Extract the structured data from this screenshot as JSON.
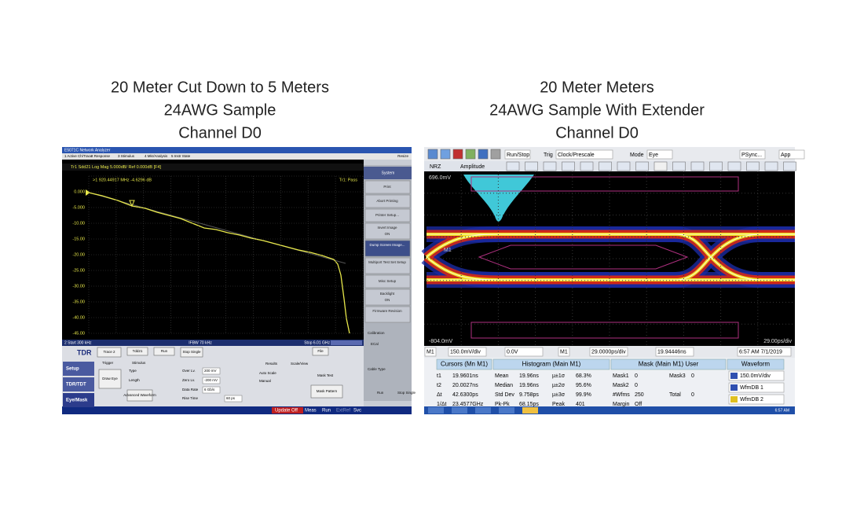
{
  "left": {
    "title_lines": [
      "20 Meter Cut Down to 5 Meters",
      "24AWG Sample",
      "Channel D0"
    ],
    "app_title": "E5071C Network Analyzer",
    "menu": [
      "1 Active Ch/Trace",
      "2 Response",
      "3 Stimulus",
      "4 Mkr/Analysis",
      "5 Instr State"
    ],
    "menu_right": "Resize",
    "trace_header": "Tr1 Sdd21 Log Mag 5.000dB/ Ref 0.000dB [F4]",
    "marker": ">1  920.44917 MHz  -4.6296 dB",
    "pass": "Tr1: Pass",
    "yticks": [
      "0.000",
      "-5.000",
      "-10.00",
      "-15.00",
      "-20.00",
      "-25.00",
      "-30.00",
      "-35.00",
      "-40.00",
      "-45.00"
    ],
    "status_start": "2  Start 300 kHz",
    "status_ifbw": "IFBW 70 kHz",
    "status_stop": "Stop 6.01 GHz",
    "side_buttons": [
      "System",
      "Print",
      "Abort Printing",
      "Printer Setup...",
      "Invert Image",
      "Dump Screen Image...",
      "Multiport Test Set Setup",
      "Misc Setup",
      "Backlight",
      "Firmware Revision"
    ],
    "side_on": [
      "ON",
      "ON"
    ],
    "tabs": [
      "Setup",
      "TDR/TDT",
      "Eye/Mask"
    ],
    "panel_brand": "TDR",
    "panel_buttons": [
      "Trace 2",
      "Tdd21",
      "Run",
      "Stop Single",
      "File",
      "Draw Eye",
      "Advanced Waveform",
      "Mask Pattern"
    ],
    "panel_labels": [
      "Trigger",
      "Stimulus",
      "Type",
      "Length",
      "Over Lv.",
      "Zero Lv.",
      "Data Rate",
      "Rise Time",
      "Results",
      "Scale/View",
      "Auto Scale",
      "Manual",
      "Mask Test"
    ],
    "panel_values": [
      "200 mV",
      "-200 mV",
      "6 Gb/s",
      "60 ps"
    ],
    "cal": [
      "Calibration",
      "ECal",
      "Cable Type",
      "Run",
      "Stop Single"
    ],
    "bottom_status": [
      "Update Off",
      "Meas",
      "Run",
      "ExtRef",
      "Svc"
    ]
  },
  "right": {
    "title_lines": [
      "20 Meter Meters",
      "24AWG Sample With Extender",
      "Channel D0"
    ],
    "toolbar": [
      "Run/Stop",
      "Trig",
      "Clock/Prescale",
      "Mode",
      "Eye",
      "PSync...",
      "App"
    ],
    "toolbar2": [
      "NRZ",
      "Amplitude"
    ],
    "top_level": "696.0mV",
    "bottom_level": "-804.0mV",
    "marker": "M1",
    "timebase": "29.00ps/div",
    "controls": [
      "M1",
      "150.0mV/div",
      "0.0V",
      "M1",
      "29.0000ps/div",
      "19.94446ns",
      "6:57 AM 7/1/2019"
    ],
    "table_headers": [
      "Cursors (Mn M1)",
      "Histogram (Main M1)",
      "Mask (Main M1) User",
      "Waveform"
    ],
    "table_rows": [
      [
        "t1",
        "19.9601ns",
        "Mean",
        "19.96ns",
        "µ±1σ",
        "68.3%",
        "Mask1",
        "0",
        "Mask3",
        "0"
      ],
      [
        "t2",
        "20.0027ns",
        "Median",
        "19.96ns",
        "µ±2σ",
        "95.6%",
        "Mask2",
        "0"
      ],
      [
        "Δt",
        "42.6300ps",
        "Std Dev",
        "9.758ps",
        "µ±3σ",
        "99.9%",
        "#Wfms",
        "250",
        "Total",
        "0"
      ],
      [
        "1/Δt",
        "23.4577GHz",
        "Pk-Pk",
        "68.15ps",
        "Peak",
        "401",
        "Margin",
        "Off"
      ]
    ],
    "waveforms": [
      "150.0mV/div",
      "WfmDB 1",
      "WfmDB 2"
    ],
    "taskbar_time": "6:57 AM"
  }
}
